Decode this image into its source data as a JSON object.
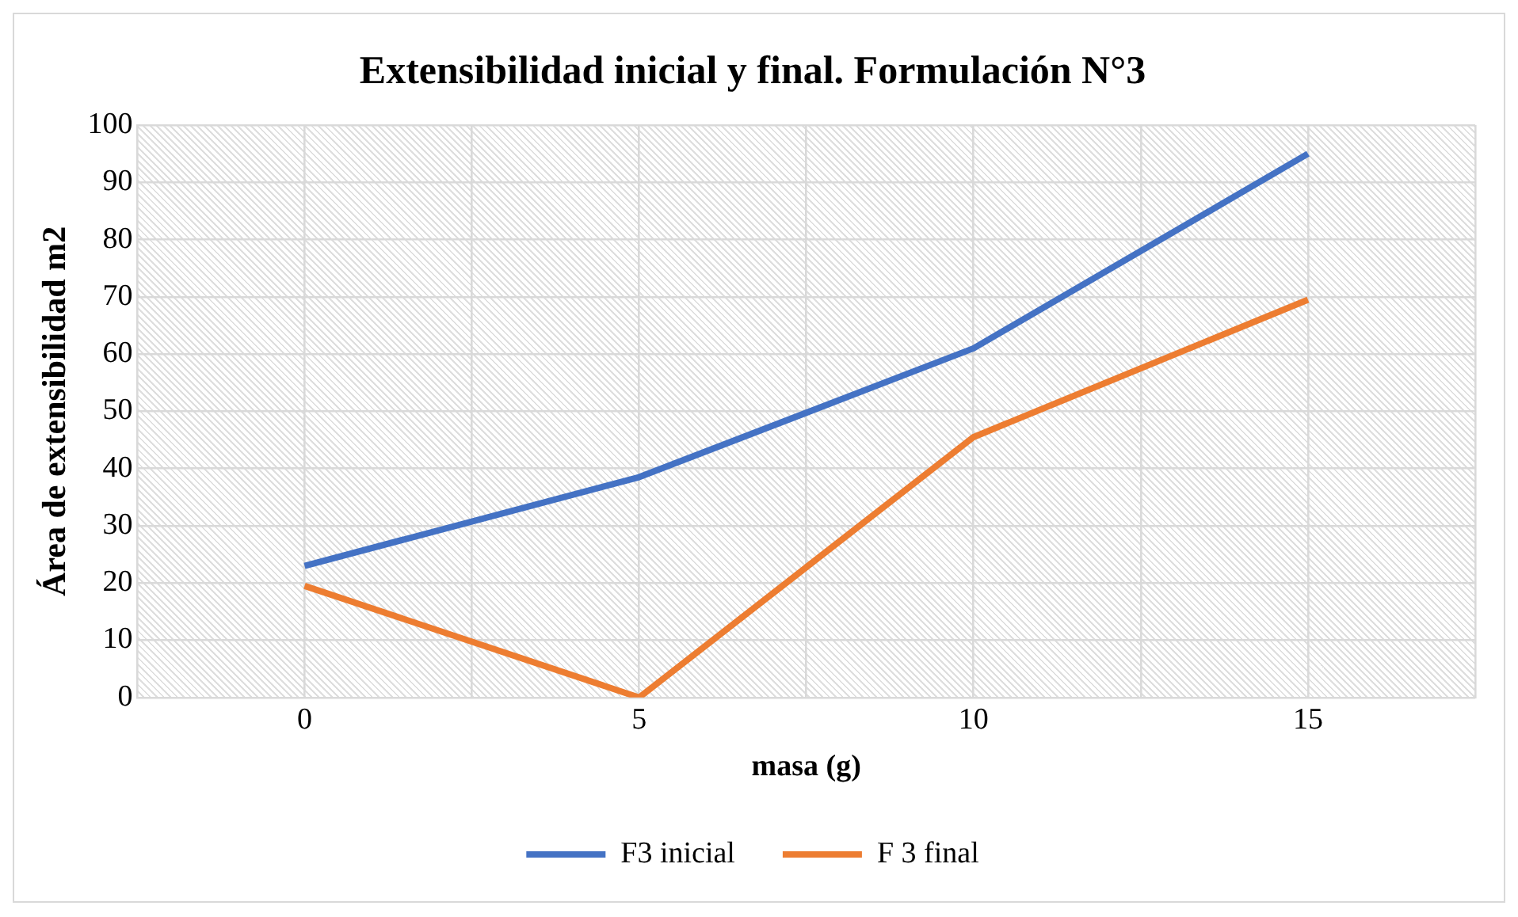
{
  "chart_data": {
    "type": "line",
    "title": "Extensibilidad inicial y final. Formulación N°3",
    "xlabel": "masa (g)",
    "ylabel": "Área de extensibilidad m2",
    "x": [
      0,
      5,
      10,
      15
    ],
    "xlim": [
      -2.5,
      17.5
    ],
    "xticks": [
      {
        "value": -2.5,
        "label": null
      },
      0,
      {
        "value": 2.5,
        "label": null
      },
      5,
      {
        "value": 7.5,
        "label": null
      },
      10,
      {
        "value": 12.5,
        "label": null
      },
      15,
      {
        "value": 17.5,
        "label": null
      }
    ],
    "ylim": [
      0,
      100
    ],
    "yticks": [
      0,
      10,
      20,
      30,
      40,
      50,
      60,
      70,
      80,
      90,
      100
    ],
    "grid": true,
    "legend": "bottom",
    "marker": "none",
    "line_style": "solid",
    "series": [
      {
        "name": "F3 inicial",
        "color": "#4472c4",
        "values": [
          23,
          38.5,
          61,
          95
        ]
      },
      {
        "name": "F 3 final",
        "color": "#ed7d31",
        "values": [
          19.5,
          0,
          45.5,
          69.5
        ]
      }
    ]
  }
}
